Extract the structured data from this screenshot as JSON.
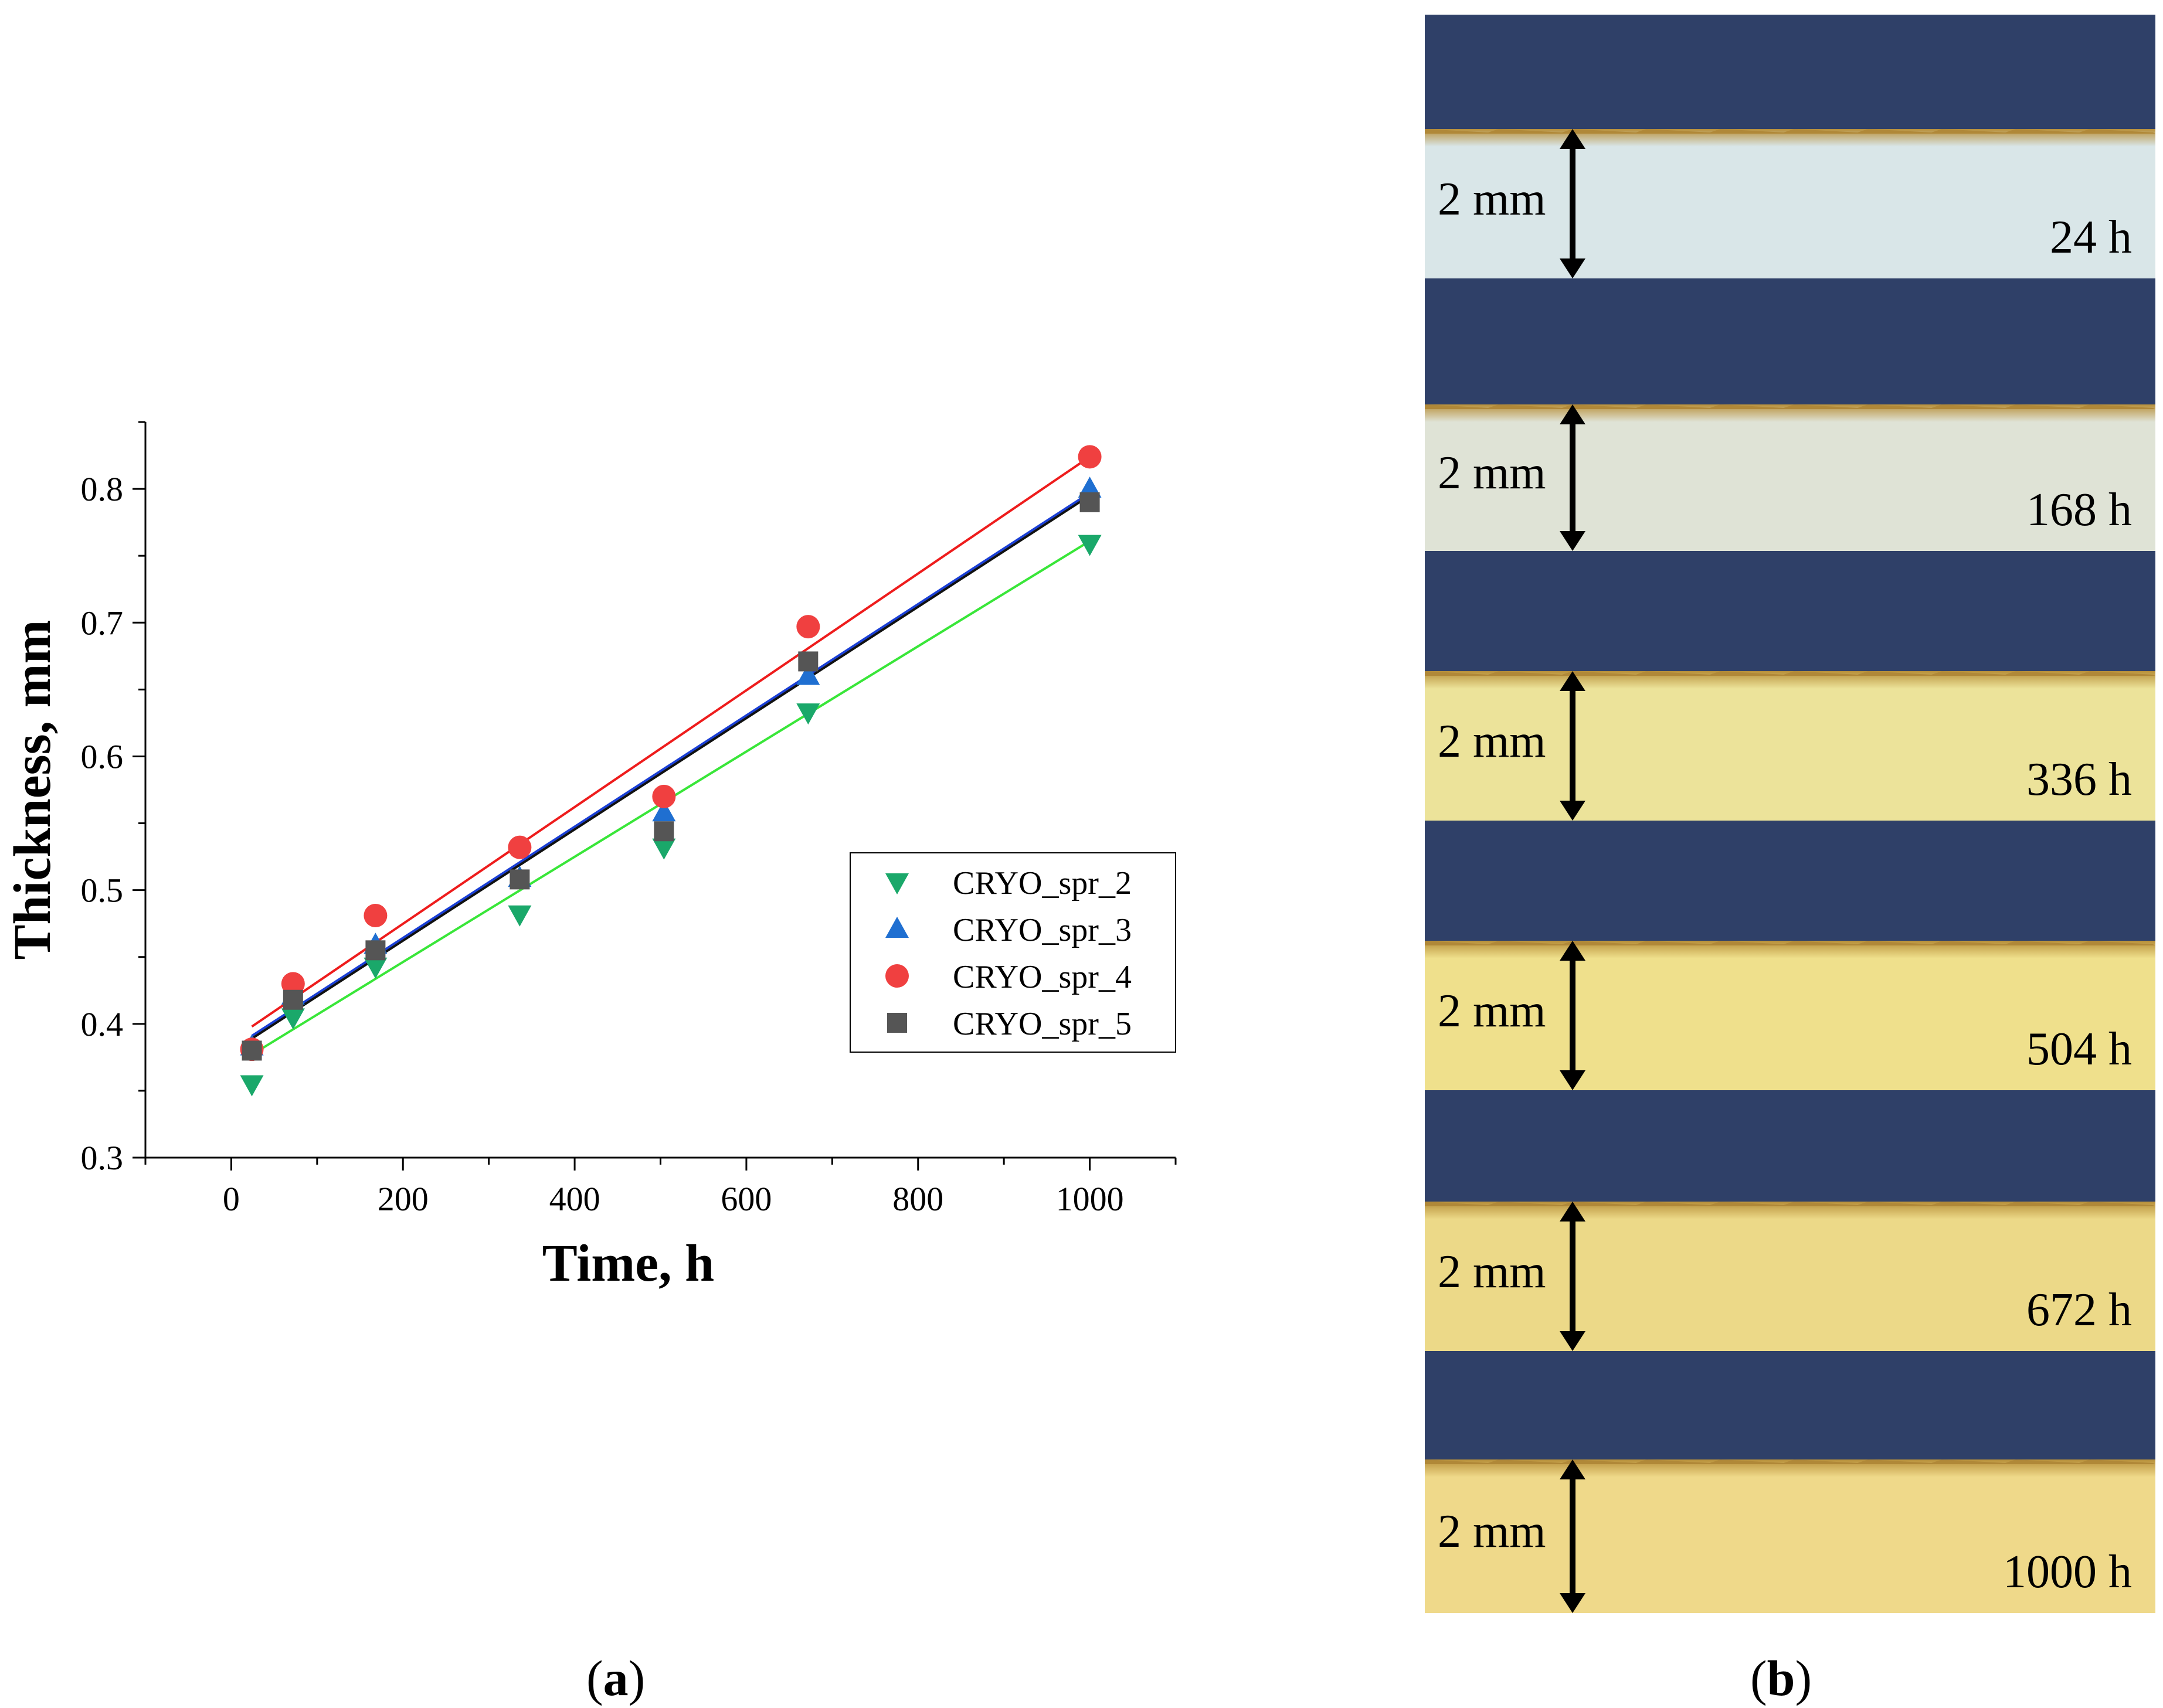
{
  "chart_data": {
    "type": "scatter",
    "xlabel": "Time, h",
    "ylabel": "Thickness, mm",
    "xlim": [
      -100,
      1100
    ],
    "ylim": [
      0.3,
      0.85
    ],
    "xticks": [
      0,
      200,
      400,
      600,
      800,
      1000
    ],
    "xtick_labels": [
      "0",
      "200",
      "400",
      "600",
      "800",
      "1000"
    ],
    "yticks": [
      0.3,
      0.4,
      0.5,
      0.6,
      0.7,
      0.8
    ],
    "ytick_labels": [
      "0.3",
      "0.4",
      "0.5",
      "0.6",
      "0.7",
      "0.8"
    ],
    "grid": false,
    "legend_position": "center-right",
    "series": [
      {
        "name": "CRYO_spr_2",
        "marker": "triangle-down",
        "color": "#1aa86a",
        "fit_color": "#39e639",
        "x": [
          24,
          72,
          168,
          336,
          504,
          672,
          1000
        ],
        "y": [
          0.355,
          0.405,
          0.443,
          0.482,
          0.532,
          0.633,
          0.759
        ],
        "fit": [
          [
            24,
            0.377
          ],
          [
            1000,
            0.761
          ]
        ]
      },
      {
        "name": "CRYO_spr_3",
        "marker": "triangle-up",
        "color": "#1f6fd1",
        "fit_color": "#1a3fd6",
        "x": [
          24,
          72,
          168,
          336,
          504,
          672,
          1000
        ],
        "y": [
          0.383,
          0.421,
          0.459,
          0.509,
          0.558,
          0.66,
          0.8
        ],
        "fit": [
          [
            24,
            0.391
          ],
          [
            1000,
            0.797
          ]
        ]
      },
      {
        "name": "CRYO_spr_4",
        "marker": "circle",
        "color": "#f04040",
        "fit_color": "#ee1c1c",
        "x": [
          24,
          72,
          168,
          336,
          504,
          672,
          1000
        ],
        "y": [
          0.381,
          0.43,
          0.481,
          0.532,
          0.57,
          0.697,
          0.824
        ],
        "fit": [
          [
            24,
            0.398
          ],
          [
            1000,
            0.824
          ]
        ]
      },
      {
        "name": "CRYO_spr_5",
        "marker": "square",
        "color": "#555555",
        "fit_color": "#111111",
        "x": [
          24,
          72,
          168,
          336,
          504,
          672,
          1000
        ],
        "y": [
          0.38,
          0.418,
          0.455,
          0.508,
          0.544,
          0.671,
          0.79
        ],
        "fit": [
          [
            24,
            0.389
          ],
          [
            1000,
            0.795
          ]
        ]
      }
    ]
  },
  "panel_a": {
    "caption_open": "(",
    "caption_letter": "a",
    "caption_close": ")"
  },
  "panel_b": {
    "caption_open": "(",
    "caption_letter": "b",
    "caption_close": ")",
    "background_color": "#2f4068",
    "scale_label": "2 mm",
    "samples": [
      {
        "time": "24 h",
        "color": "#d9e6e8"
      },
      {
        "time": "168 h",
        "color": "#dfe3d6"
      },
      {
        "time": "336 h",
        "color": "#ece39a"
      },
      {
        "time": "504 h",
        "color": "#efe08c"
      },
      {
        "time": "672 h",
        "color": "#ecd988"
      },
      {
        "time": "1000 h",
        "color": "#efd98a"
      }
    ]
  }
}
